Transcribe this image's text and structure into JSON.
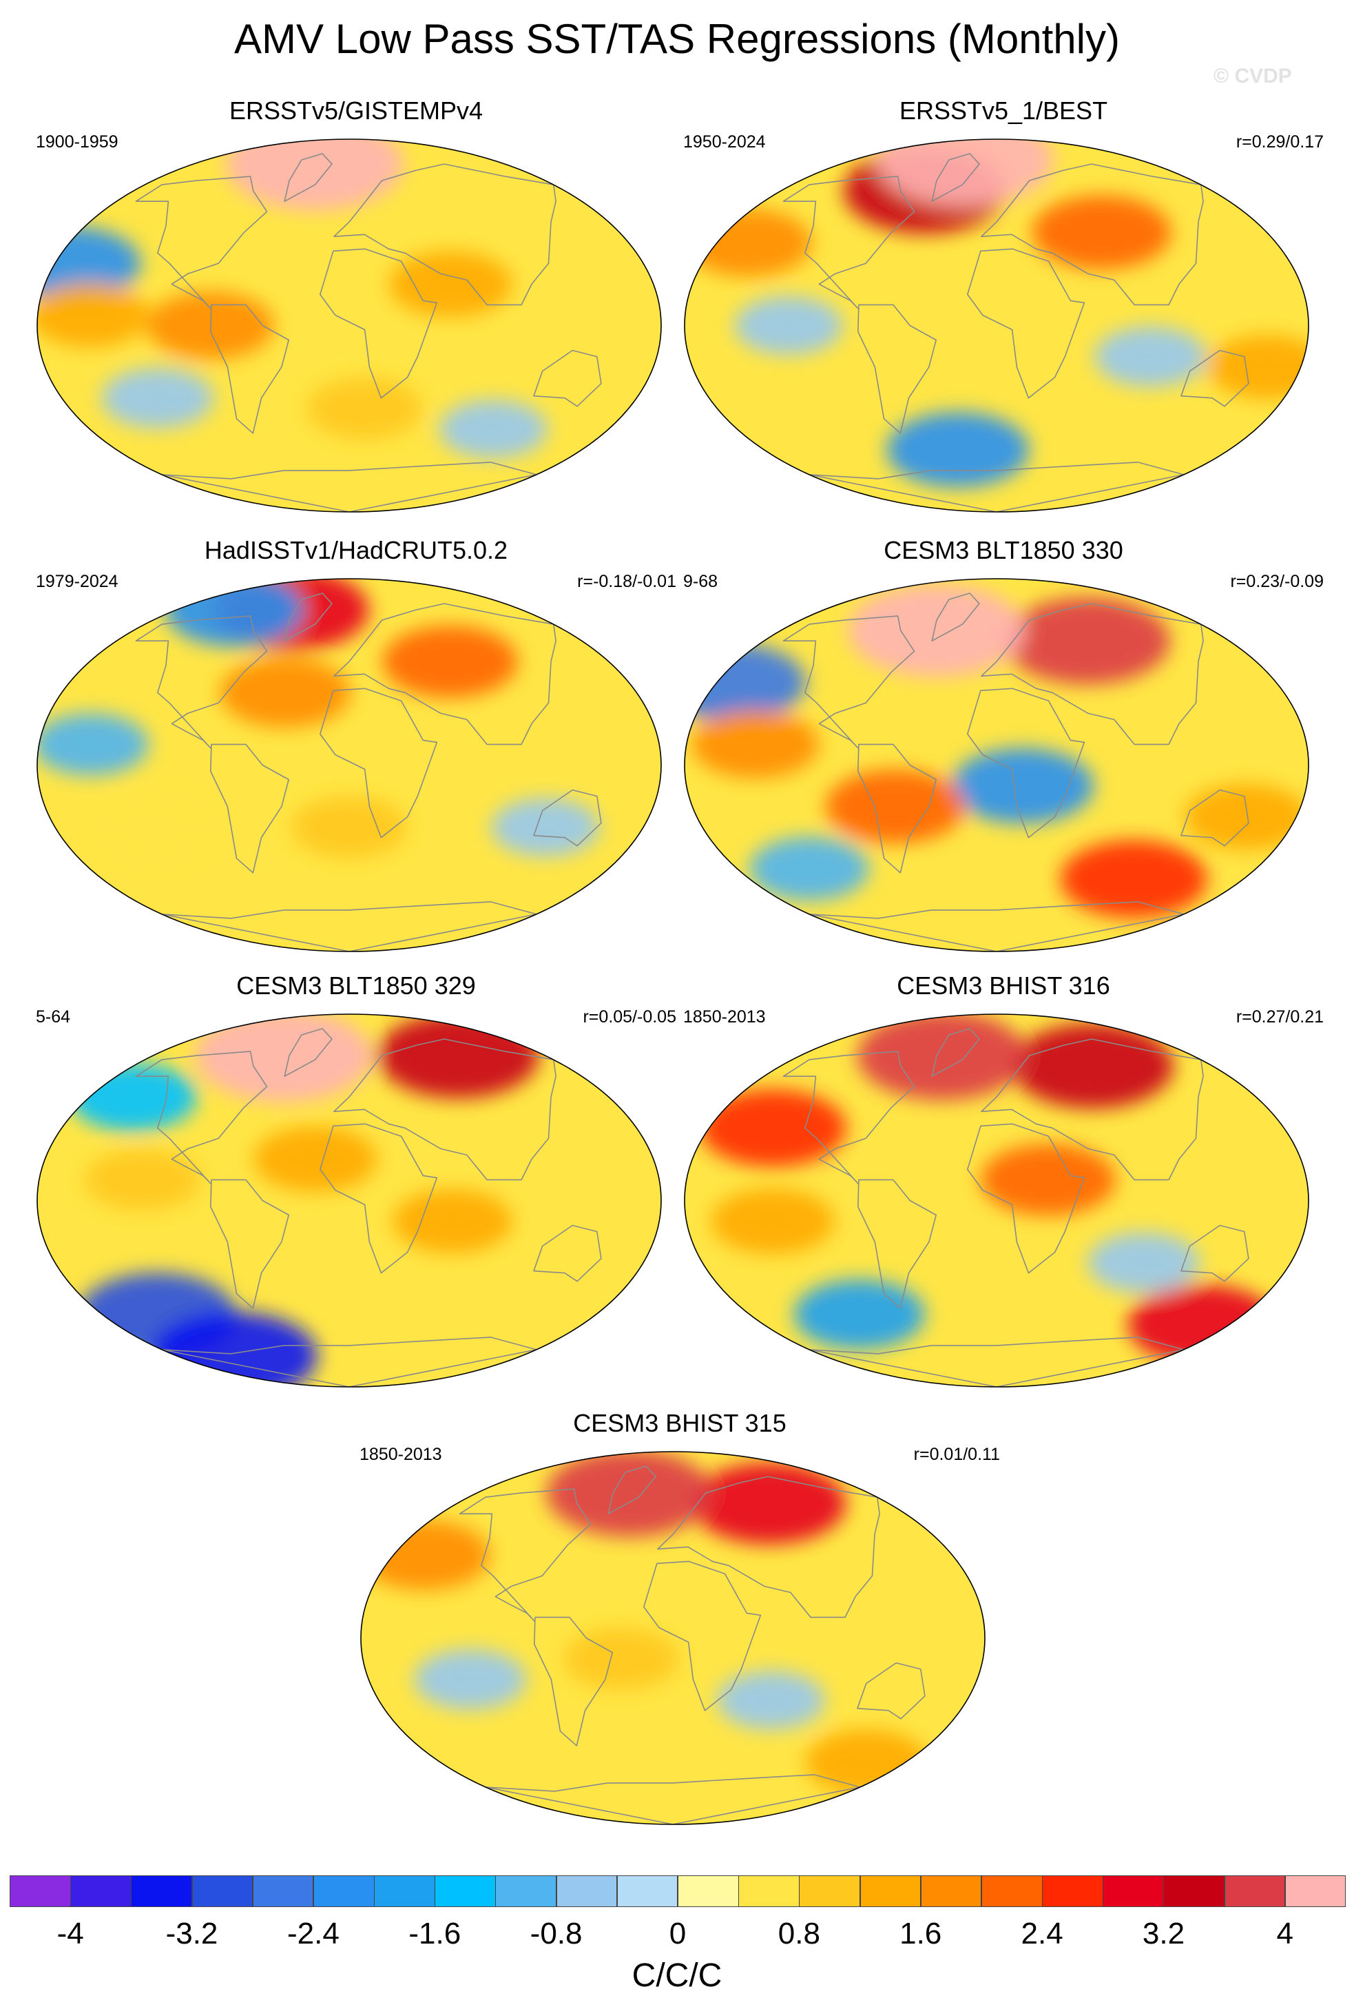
{
  "figure": {
    "title": "AMV Low Pass SST/TAS Regressions (Monthly)",
    "watermark": "© CVDP"
  },
  "chart_data": {
    "type": "heatmap",
    "colorbar": {
      "units": "C/C/C",
      "range": [
        -4.4,
        4.4
      ],
      "step": 0.4,
      "tick_labels": [
        "-4",
        "-3.2",
        "-2.4",
        "-1.6",
        "-0.8",
        "0",
        "0.8",
        "1.6",
        "2.4",
        "3.2",
        "4"
      ],
      "tick_values": [
        -4,
        -3.2,
        -2.4,
        -1.6,
        -0.8,
        0,
        0.8,
        1.6,
        2.4,
        3.2,
        4
      ],
      "colors": [
        "#8a2be2",
        "#3c1ee8",
        "#0a14f0",
        "#2850e0",
        "#3c78e6",
        "#2890f0",
        "#1ea0f0",
        "#00c0ff",
        "#50b4f0",
        "#96c8f0",
        "#b4dcf6",
        "#fff9a0",
        "#ffe646",
        "#ffc81e",
        "#ffaa00",
        "#ff8c00",
        "#ff6400",
        "#ff2800",
        "#e6001e",
        "#c80014",
        "#dc3c46",
        "#ffb4b4"
      ]
    },
    "panels": [
      {
        "title": "ERSSTv5/GISTEMPv4",
        "period": "1900-1959",
        "correlation": "",
        "features": [
          {
            "lon": -170,
            "lat": 30,
            "value": -2.2
          },
          {
            "lon": -40,
            "lat": 78,
            "value": 4.2
          },
          {
            "lon": -150,
            "lat": 5,
            "value": 1.2
          },
          {
            "lon": -120,
            "lat": -35,
            "value": -0.8
          },
          {
            "lon": 60,
            "lat": 20,
            "value": 1.4
          },
          {
            "lon": -80,
            "lat": 0,
            "value": 1.6
          },
          {
            "lon": 10,
            "lat": -40,
            "value": 1.0
          },
          {
            "lon": 100,
            "lat": -50,
            "value": -0.6
          }
        ]
      },
      {
        "title": "ERSSTv5_1/BEST",
        "period": "1950-2024",
        "correlation": "r=0.29/0.17",
        "features": [
          {
            "lon": -60,
            "lat": 65,
            "value": 3.4
          },
          {
            "lon": -40,
            "lat": 80,
            "value": 4.2
          },
          {
            "lon": -160,
            "lat": 40,
            "value": 1.6
          },
          {
            "lon": 70,
            "lat": 45,
            "value": 2.2
          },
          {
            "lon": -120,
            "lat": 0,
            "value": -0.6
          },
          {
            "lon": -30,
            "lat": -60,
            "value": -2.4
          },
          {
            "lon": 160,
            "lat": -20,
            "value": 1.2
          },
          {
            "lon": 90,
            "lat": -15,
            "value": -0.8
          }
        ]
      },
      {
        "title": "HadISSTv1/HadCRUT5.0.2",
        "period": "1979-2024",
        "correlation": "r=-0.18/-0.01",
        "features": [
          {
            "lon": -60,
            "lat": 75,
            "value": 3.0
          },
          {
            "lon": -120,
            "lat": 75,
            "value": -2.2
          },
          {
            "lon": 70,
            "lat": 50,
            "value": 2.0
          },
          {
            "lon": -150,
            "lat": 10,
            "value": -1.0
          },
          {
            "lon": -40,
            "lat": 35,
            "value": 1.8
          },
          {
            "lon": 0,
            "lat": -30,
            "value": 1.0
          },
          {
            "lon": 120,
            "lat": -30,
            "value": -0.6
          },
          {
            "lon": -120,
            "lat": -30,
            "value": 0.6
          }
        ]
      },
      {
        "title": "CESM3 BLT1850 330",
        "period": "9-68",
        "correlation": "r=0.23/-0.09",
        "features": [
          {
            "lon": 70,
            "lat": 60,
            "value": 3.6
          },
          {
            "lon": -50,
            "lat": 65,
            "value": 4.2
          },
          {
            "lon": -170,
            "lat": 40,
            "value": -2.6
          },
          {
            "lon": -140,
            "lat": 10,
            "value": 1.6
          },
          {
            "lon": 15,
            "lat": -10,
            "value": -2.4
          },
          {
            "lon": -60,
            "lat": -20,
            "value": 2.2
          },
          {
            "lon": 100,
            "lat": -55,
            "value": 2.6
          },
          {
            "lon": 150,
            "lat": -25,
            "value": 1.4
          },
          {
            "lon": -130,
            "lat": -50,
            "value": -1.2
          }
        ]
      },
      {
        "title": "CESM3 BLT1850 329",
        "period": "5-64",
        "correlation": "r=0.05/-0.05",
        "features": [
          {
            "lon": 100,
            "lat": 70,
            "value": 3.4
          },
          {
            "lon": -60,
            "lat": 70,
            "value": 4.2
          },
          {
            "lon": -150,
            "lat": 50,
            "value": -1.6
          },
          {
            "lon": -120,
            "lat": 10,
            "value": 1.0
          },
          {
            "lon": -140,
            "lat": -55,
            "value": -3.2
          },
          {
            "lon": -120,
            "lat": -75,
            "value": -3.6
          },
          {
            "lon": 60,
            "lat": -10,
            "value": 1.2
          },
          {
            "lon": -20,
            "lat": 20,
            "value": 1.4
          }
        ]
      },
      {
        "title": "CESM3 BHIST 316",
        "period": "1850-2013",
        "correlation": "r=0.27/0.21",
        "features": [
          {
            "lon": 80,
            "lat": 65,
            "value": 3.4
          },
          {
            "lon": -50,
            "lat": 70,
            "value": 3.8
          },
          {
            "lon": -140,
            "lat": 35,
            "value": 2.6
          },
          {
            "lon": -130,
            "lat": -10,
            "value": 1.4
          },
          {
            "lon": 30,
            "lat": 10,
            "value": 2.0
          },
          {
            "lon": 160,
            "lat": -60,
            "value": 2.8
          },
          {
            "lon": -100,
            "lat": -55,
            "value": -1.8
          },
          {
            "lon": 90,
            "lat": -30,
            "value": -0.8
          }
        ]
      },
      {
        "title": "CESM3 BHIST 315",
        "period": "1850-2013",
        "correlation": "r=0.01/0.11",
        "features": [
          {
            "lon": 80,
            "lat": 65,
            "value": 3.0
          },
          {
            "lon": -40,
            "lat": 70,
            "value": 3.6
          },
          {
            "lon": -160,
            "lat": 40,
            "value": 1.8
          },
          {
            "lon": -120,
            "lat": -20,
            "value": -0.8
          },
          {
            "lon": 60,
            "lat": -30,
            "value": -0.6
          },
          {
            "lon": -30,
            "lat": -10,
            "value": 1.0
          },
          {
            "lon": 150,
            "lat": -60,
            "value": 1.4
          }
        ]
      }
    ]
  }
}
